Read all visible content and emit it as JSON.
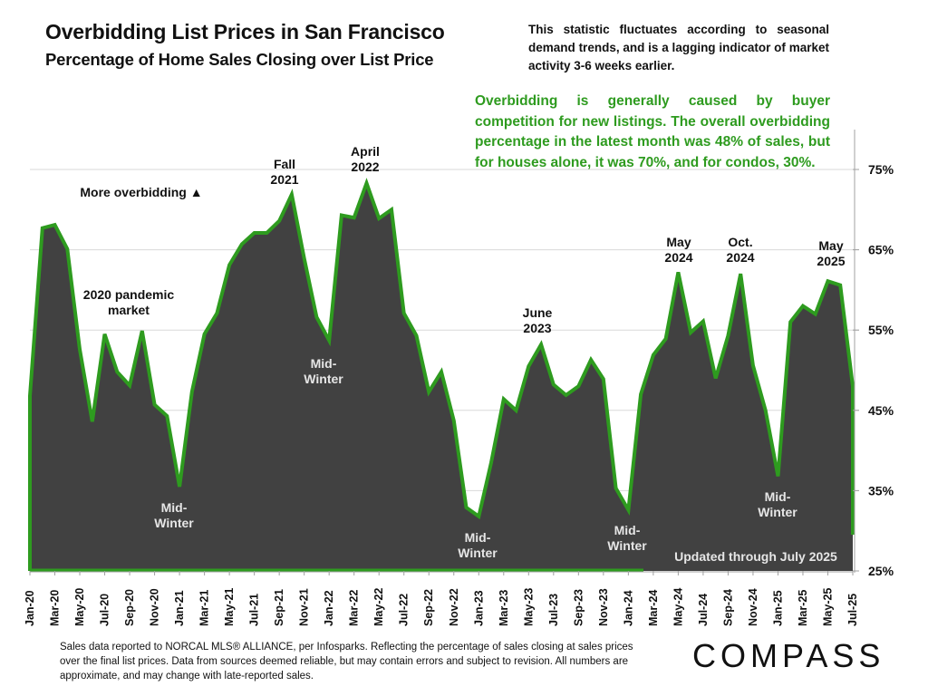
{
  "header": {
    "title": "Overbidding List Prices in San Francisco",
    "subtitle": "Percentage of Home Sales Closing over List Price"
  },
  "notes": {
    "seasonal": "This statistic fluctuates according to seasonal demand trends, and is a lagging indicator of market activity 3-6 weeks earlier.",
    "summary": "Overbidding is generally caused by buyer competition for new listings. The overall overbidding percentage in the latest month was 48% of sales, but for houses alone, it was 70%, and for condos, 30%."
  },
  "footer": {
    "source": "Sales data reported to NORCAL MLS® ALLIANCE, per Infosparks. Reflecting the percentage of sales closing at sales prices over the final list prices. Data from sources deemed reliable, but may contain errors and subject to revision. All numbers are approximate, and may change with late-reported sales.",
    "logo": "COMPASS"
  },
  "colors": {
    "area_fill": "#414141",
    "line": "#2e9b1f",
    "summary_text": "#2e9b1f",
    "gridline": "#d9d9d9"
  },
  "chart_data": {
    "type": "area",
    "title": "Overbidding List Prices in San Francisco",
    "subtitle": "Percentage of Home Sales Closing over List Price",
    "xlabel": "",
    "ylabel": "",
    "ylim": [
      25,
      75
    ],
    "y_ticks": [
      "25%",
      "35%",
      "45%",
      "55%",
      "65%",
      "75%"
    ],
    "y_axis_side": "right",
    "grid": true,
    "x_tick_labels": [
      "Jan-20",
      "Mar-20",
      "May-20",
      "Jul-20",
      "Sep-20",
      "Nov-20",
      "Jan-21",
      "Mar-21",
      "May-21",
      "Jul-21",
      "Sep-21",
      "Nov-21",
      "Jan-22",
      "Mar-22",
      "May-22",
      "Jul-22",
      "Sep-22",
      "Nov-22",
      "Jan-23",
      "Mar-23",
      "May-23",
      "Jul-23",
      "Sep-23",
      "Nov-23",
      "Jan-24",
      "Mar-24",
      "May-24",
      "Jul-24",
      "Sep-24",
      "Nov-24",
      "Jan-25",
      "Mar-25",
      "May-25",
      "Jul-25"
    ],
    "x": [
      "Jan-20",
      "Feb-20",
      "Mar-20",
      "Apr-20",
      "May-20",
      "Jun-20",
      "Jul-20",
      "Aug-20",
      "Sep-20",
      "Oct-20",
      "Nov-20",
      "Dec-20",
      "Jan-21",
      "Feb-21",
      "Mar-21",
      "Apr-21",
      "May-21",
      "Jun-21",
      "Jul-21",
      "Aug-21",
      "Sep-21",
      "Oct-21",
      "Nov-21",
      "Dec-21",
      "Jan-22",
      "Feb-22",
      "Mar-22",
      "Apr-22",
      "May-22",
      "Jun-22",
      "Jul-22",
      "Aug-22",
      "Sep-22",
      "Oct-22",
      "Nov-22",
      "Dec-22",
      "Jan-23",
      "Feb-23",
      "Mar-23",
      "Apr-23",
      "May-23",
      "Jun-23",
      "Jul-23",
      "Aug-23",
      "Sep-23",
      "Oct-23",
      "Nov-23",
      "Dec-23",
      "Jan-24",
      "Feb-24",
      "Mar-24",
      "Apr-24",
      "May-24",
      "Jun-24",
      "Jul-24",
      "Aug-24",
      "Sep-24",
      "Oct-24",
      "Nov-24",
      "Dec-24",
      "Jan-25",
      "Feb-25",
      "Mar-25",
      "Apr-25",
      "May-25",
      "Jun-25",
      "Jul-25"
    ],
    "series": [
      {
        "name": "% of sales over list price",
        "values": [
          46.8,
          67.7,
          68.1,
          65.1,
          52.6,
          43.6,
          54.5,
          49.8,
          48.1,
          54.9,
          45.7,
          44.3,
          35.5,
          47.3,
          54.5,
          57.1,
          63.1,
          65.7,
          67.1,
          67.1,
          68.6,
          71.9,
          63.9,
          56.6,
          53.7,
          69.3,
          69.0,
          73.3,
          68.9,
          70.0,
          57.1,
          54.3,
          47.3,
          49.8,
          43.7,
          32.9,
          31.8,
          38.5,
          46.4,
          45.0,
          50.5,
          53.2,
          48.2,
          46.9,
          48.0,
          51.3,
          48.9,
          35.3,
          32.6,
          47.0,
          51.9,
          53.9,
          62.2,
          54.7,
          56.1,
          49.0,
          54.3,
          62.0,
          50.6,
          45.0,
          36.8,
          56.0,
          58.0,
          57.0,
          61.1,
          60.6,
          48.0
        ]
      }
    ],
    "annotations": [
      {
        "id": "more-overbidding",
        "text": "More overbidding ▲",
        "style": "dark"
      },
      {
        "id": "pandemic",
        "lines": [
          "2020 pandemic",
          "market"
        ],
        "style": "dark"
      },
      {
        "id": "fall-2021",
        "lines": [
          "Fall",
          "2021"
        ],
        "style": "dark"
      },
      {
        "id": "april-2022",
        "lines": [
          "April",
          "2022"
        ],
        "style": "dark"
      },
      {
        "id": "june-2023",
        "lines": [
          "June",
          "2023"
        ],
        "style": "dark"
      },
      {
        "id": "may-2024",
        "lines": [
          "May",
          "2024"
        ],
        "style": "dark"
      },
      {
        "id": "oct-2024",
        "lines": [
          "Oct.",
          "2024"
        ],
        "style": "dark"
      },
      {
        "id": "may-2025",
        "lines": [
          "May",
          "2025"
        ],
        "style": "dark"
      },
      {
        "id": "midwinter-2021",
        "lines": [
          "Mid-",
          "Winter"
        ],
        "style": "light"
      },
      {
        "id": "midwinter-2022",
        "lines": [
          "Mid-",
          "Winter"
        ],
        "style": "light"
      },
      {
        "id": "midwinter-2023",
        "lines": [
          "Mid-",
          "Winter"
        ],
        "style": "light"
      },
      {
        "id": "midwinter-2024",
        "lines": [
          "Mid-",
          "Winter"
        ],
        "style": "light"
      },
      {
        "id": "midwinter-2025",
        "lines": [
          "Mid-",
          "Winter"
        ],
        "style": "light"
      },
      {
        "id": "updated",
        "text": "Updated through July 2025",
        "style": "light"
      }
    ]
  }
}
